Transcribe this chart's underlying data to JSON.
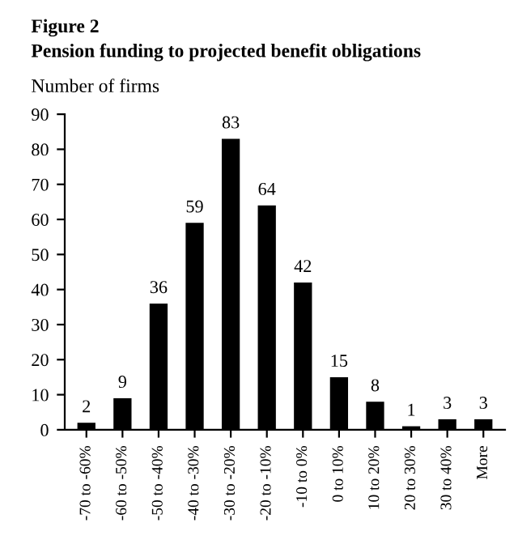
{
  "chart_data": {
    "type": "bar",
    "title": "Figure 2",
    "subtitle": "Pension funding to projected benefit obligations",
    "ylabel": "Number of firms",
    "categories": [
      "-70 to -60%",
      "-60 to -50%",
      "-50 to -40%",
      "-40 to -30%",
      "-30 to -20%",
      "-20 to -10%",
      "-10 to 0%",
      "0 to 10%",
      "10 to 20%",
      "20 to 30%",
      "30 to 40%",
      "More"
    ],
    "values": [
      2,
      9,
      36,
      59,
      83,
      64,
      42,
      15,
      8,
      1,
      3,
      3
    ],
    "color": "#000000",
    "ylim": [
      0,
      90
    ],
    "yticks": [
      0,
      10,
      20,
      30,
      40,
      50,
      60,
      70,
      80,
      90
    ],
    "data_labels": true,
    "grid": false,
    "legend": false
  }
}
